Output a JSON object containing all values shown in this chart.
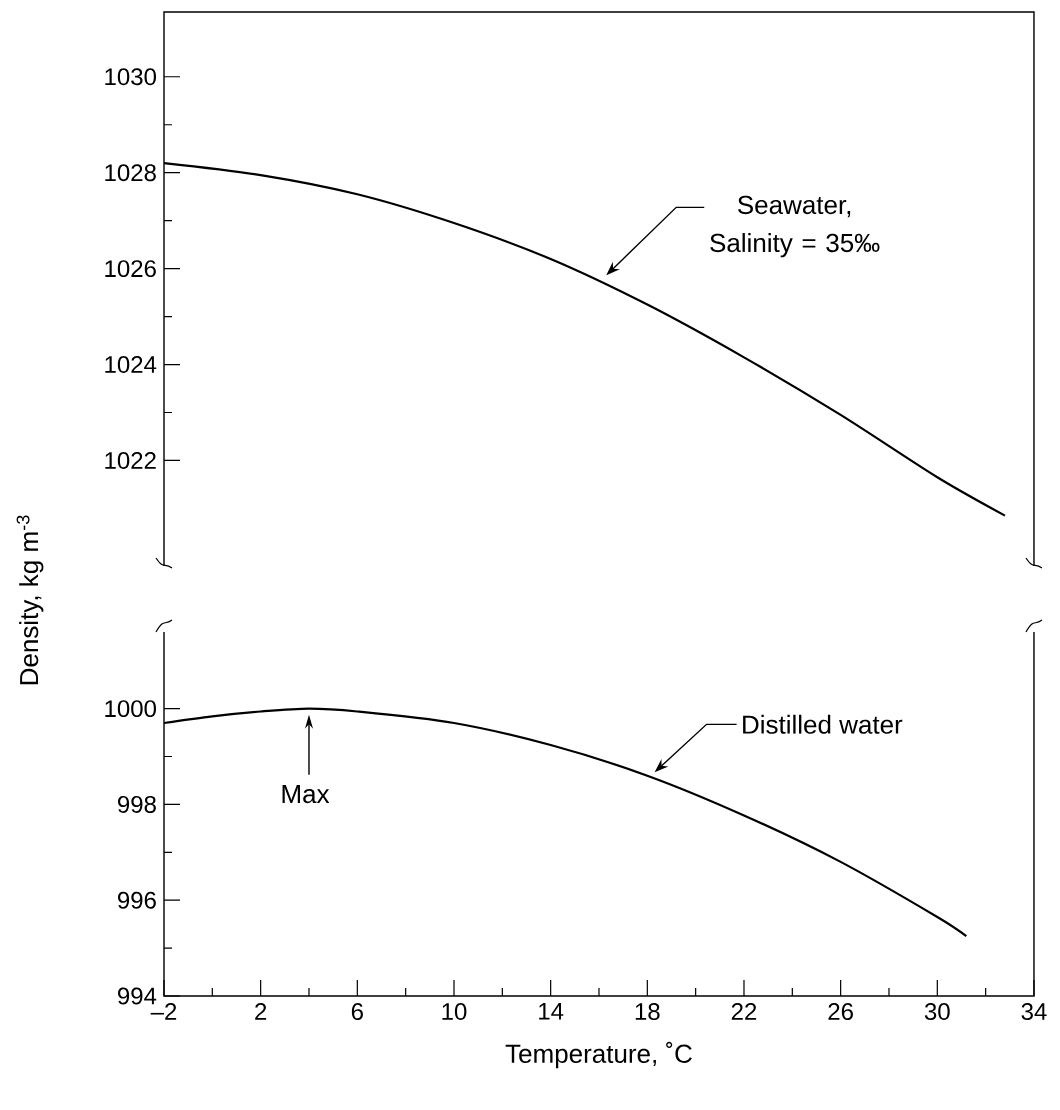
{
  "chart_data": [
    {
      "type": "line",
      "ylabel": "Density, kg m$^{-3}$",
      "xlim": [
        -2,
        34
      ],
      "ylim": [
        1019.8,
        1031.35
      ],
      "yticks": [
        1022,
        1024,
        1026,
        1028,
        1030
      ],
      "tick_labels": "y",
      "color": "#000000",
      "x": [
        -2,
        2,
        6,
        10,
        14,
        18,
        22,
        26,
        30,
        32.8
      ],
      "values": [
        1028.2,
        1027.95,
        1027.55,
        1026.95,
        1026.2,
        1025.25,
        1024.15,
        1022.95,
        1021.65,
        1020.85
      ],
      "annotations": [
        {
          "text": "Seawater, Salinity = 35‰",
          "x": 16.3,
          "y": 1025.86
        }
      ]
    },
    {
      "type": "line",
      "xlabel": "Temperature, ˚C",
      "xlim": [
        -2,
        34
      ],
      "ylim": [
        994,
        1001.6
      ],
      "yticks": [
        994,
        996,
        998,
        1000
      ],
      "color": "#000000",
      "xticks": [
        {
          "value": -2,
          "label": "–2"
        },
        2,
        6,
        10,
        14,
        18,
        22,
        26,
        30,
        34
      ],
      "x": [
        -2,
        0,
        2,
        4,
        6,
        10,
        14,
        18,
        22,
        26,
        30,
        31.2
      ],
      "values": [
        999.7,
        999.84,
        999.94,
        1000.0,
        999.94,
        999.7,
        999.24,
        998.6,
        997.77,
        996.8,
        995.65,
        995.25
      ],
      "annotations": [
        {
          "text": "Distilled water",
          "x": 18.3,
          "y": 998.67
        },
        {
          "text": "Max",
          "x": 4,
          "y": 1000.0
        }
      ]
    }
  ]
}
